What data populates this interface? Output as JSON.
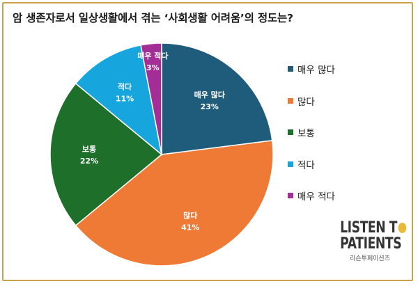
{
  "chart_data": {
    "type": "pie",
    "title": "암 생존자로서 일상생활에서 겪는 ‘사회생활 어려움’의 정도는?",
    "slices": [
      {
        "label": "매우 많다",
        "value": 23,
        "display": "23%",
        "color": "#1f5b7a"
      },
      {
        "label": "많다",
        "value": 41,
        "display": "41%",
        "color": "#ef7a35"
      },
      {
        "label": "보통",
        "value": 22,
        "display": "22%",
        "color": "#1e6f2a"
      },
      {
        "label": "적다",
        "value": 11,
        "display": "11%",
        "color": "#17a5dd"
      },
      {
        "label": "매우 적다",
        "value": 3,
        "display": "3%",
        "color": "#a42e98"
      }
    ],
    "legend": "right"
  },
  "brand": {
    "line1": "LISTEN T",
    "line2": "PATIENTS",
    "tagline": "리슨투페이션츠",
    "accent": "#e8b93a"
  }
}
